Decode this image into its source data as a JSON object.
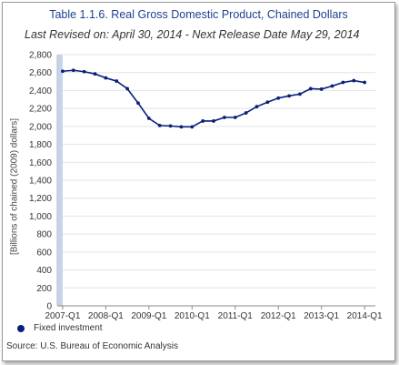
{
  "title": "Table 1.1.6. Real Gross Domestic Product, Chained Dollars",
  "subtitle": "Last Revised on: April 30, 2014 - Next Release Date May 29, 2014",
  "source": "Source: U.S. Bureau of Economic Analysis",
  "colors": {
    "series": "#0b1f7a",
    "title": "#1f3f8f",
    "highlight_band": "#c5d5ec",
    "grid": "#e3e3e3"
  },
  "chart_data": {
    "type": "line",
    "ylabel": "[Billions of chained (2009) dollars]",
    "xlabel": "",
    "ylim": [
      0,
      2800
    ],
    "yticks": [
      0,
      200,
      400,
      600,
      800,
      1000,
      1200,
      1400,
      1600,
      1800,
      2000,
      2200,
      2400,
      2600,
      2800
    ],
    "x_tick_labels": [
      "2007-Q1",
      "2008-Q1",
      "2009-Q1",
      "2010-Q1",
      "2011-Q1",
      "2012-Q1",
      "2013-Q1",
      "2014-Q1"
    ],
    "grid": "horizontal",
    "legend_position": "bottom-left",
    "categories": [
      "2007-Q1",
      "2007-Q2",
      "2007-Q3",
      "2007-Q4",
      "2008-Q1",
      "2008-Q2",
      "2008-Q3",
      "2008-Q4",
      "2009-Q1",
      "2009-Q2",
      "2009-Q3",
      "2009-Q4",
      "2010-Q1",
      "2010-Q2",
      "2010-Q3",
      "2010-Q4",
      "2011-Q1",
      "2011-Q2",
      "2011-Q3",
      "2011-Q4",
      "2012-Q1",
      "2012-Q2",
      "2012-Q3",
      "2012-Q4",
      "2013-Q1",
      "2013-Q2",
      "2013-Q3",
      "2013-Q4",
      "2014-Q1"
    ],
    "series": [
      {
        "name": "Fixed investment",
        "values": [
          2615,
          2625,
          2610,
          2585,
          2540,
          2505,
          2420,
          2260,
          2090,
          2010,
          2005,
          1995,
          1995,
          2060,
          2060,
          2100,
          2100,
          2150,
          2220,
          2270,
          2315,
          2340,
          2360,
          2420,
          2415,
          2450,
          2490,
          2510,
          2490
        ]
      }
    ]
  }
}
